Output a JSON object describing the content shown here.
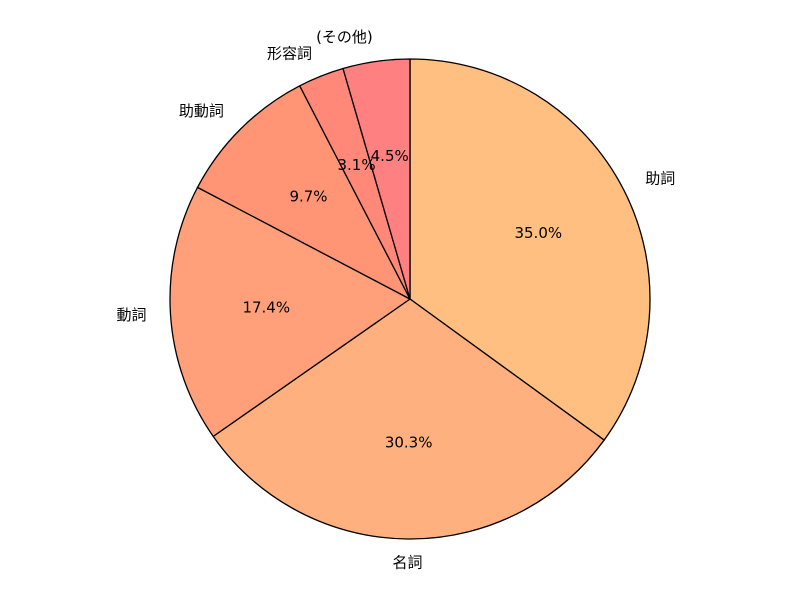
{
  "chart_data": {
    "type": "pie",
    "categories": [
      "助詞",
      "名詞",
      "動詞",
      "助動詞",
      "形容詞",
      "(その他)"
    ],
    "values": [
      35.0,
      30.3,
      17.4,
      9.7,
      3.1,
      4.5
    ],
    "value_labels": [
      "35.0%",
      "30.3%",
      "17.4%",
      "9.7%",
      "3.1%",
      "4.5%"
    ],
    "colors": [
      "#ffbf80",
      "#ffb07e",
      "#ffa07a",
      "#ff9575",
      "#ff8878",
      "#ff8080"
    ]
  }
}
